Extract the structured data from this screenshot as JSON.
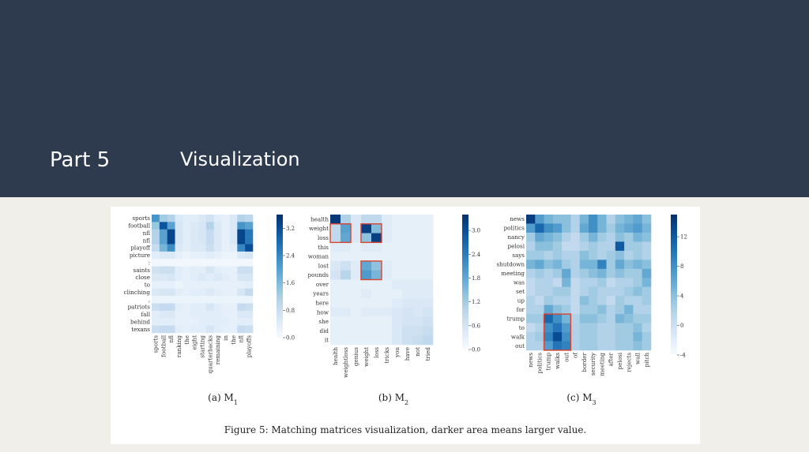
{
  "header": {
    "part": "Part 5",
    "title": "Visualization"
  },
  "figure": {
    "caption": "Figure 5: Matching matrices visualization, darker area means larger value."
  },
  "colors": {
    "header_bg": "#2e3a4e",
    "cmap_low": "#f7fbff",
    "cmap_high": "#08306b",
    "highlight_box": "#d9442e"
  },
  "chart_data": [
    {
      "type": "heatmap",
      "caption": "(a) M",
      "caption_sub": "1",
      "rows": [
        "sports",
        "football",
        "nfl",
        "nfl",
        "playoff",
        "picture",
        ":",
        "saints",
        "close",
        "to",
        "clinching",
        ",",
        "patriots",
        "fall",
        "behind",
        "texans"
      ],
      "cols": [
        "sports",
        "football",
        "nfl",
        "ranking",
        "the",
        "eight",
        "starting",
        "quarterbacks",
        "remaining",
        "in",
        "the",
        "nfl",
        "playoffs"
      ],
      "colorbar_ticks": [
        "3.2",
        "2.4",
        "1.6",
        "0.8",
        "0.0"
      ],
      "vmin": 0,
      "vmax": 3.6,
      "values": [
        [
          2.2,
          1.3,
          1.1,
          0.5,
          0.4,
          0.4,
          0.5,
          0.7,
          0.4,
          0.3,
          0.5,
          1.1,
          1.0
        ],
        [
          1.4,
          3.1,
          2.0,
          0.6,
          0.4,
          0.5,
          0.6,
          1.1,
          0.5,
          0.3,
          0.5,
          2.2,
          2.0
        ],
        [
          1.1,
          2.0,
          3.3,
          0.6,
          0.4,
          0.5,
          0.6,
          0.9,
          0.5,
          0.3,
          0.5,
          3.3,
          2.6
        ],
        [
          1.1,
          2.0,
          3.3,
          0.6,
          0.4,
          0.5,
          0.6,
          0.9,
          0.5,
          0.3,
          0.5,
          3.3,
          2.6
        ],
        [
          0.9,
          1.7,
          2.3,
          0.5,
          0.4,
          0.5,
          0.5,
          0.8,
          0.5,
          0.3,
          0.4,
          2.4,
          3.2
        ],
        [
          0.4,
          0.5,
          0.5,
          0.3,
          0.2,
          0.3,
          0.3,
          0.4,
          0.3,
          0.2,
          0.2,
          0.5,
          0.6
        ],
        [
          0.1,
          0.1,
          0.1,
          0.1,
          0.1,
          0.1,
          0.1,
          0.1,
          0.1,
          0.1,
          0.1,
          0.1,
          0.1
        ],
        [
          0.7,
          0.8,
          0.8,
          0.4,
          0.3,
          0.4,
          0.4,
          0.6,
          0.4,
          0.3,
          0.3,
          0.8,
          0.8
        ],
        [
          0.5,
          0.5,
          0.6,
          0.4,
          0.3,
          0.4,
          0.5,
          0.4,
          0.5,
          0.4,
          0.3,
          0.6,
          0.6
        ],
        [
          0.3,
          0.3,
          0.3,
          0.2,
          0.3,
          0.3,
          0.3,
          0.3,
          0.3,
          0.3,
          0.3,
          0.3,
          0.4
        ],
        [
          0.5,
          0.6,
          0.6,
          0.4,
          0.3,
          0.4,
          0.4,
          0.5,
          0.4,
          0.3,
          0.3,
          0.6,
          0.9
        ],
        [
          0.2,
          0.2,
          0.2,
          0.2,
          0.2,
          0.2,
          0.2,
          0.2,
          0.2,
          0.2,
          0.2,
          0.2,
          0.2
        ],
        [
          0.8,
          0.9,
          0.9,
          0.4,
          0.3,
          0.4,
          0.4,
          0.6,
          0.4,
          0.3,
          0.3,
          0.9,
          0.8
        ],
        [
          0.4,
          0.5,
          0.5,
          0.3,
          0.3,
          0.4,
          0.4,
          0.4,
          0.4,
          0.3,
          0.3,
          0.5,
          0.5
        ],
        [
          0.4,
          0.4,
          0.4,
          0.3,
          0.3,
          0.3,
          0.4,
          0.4,
          0.4,
          0.4,
          0.3,
          0.4,
          0.4
        ],
        [
          0.8,
          0.9,
          0.9,
          0.4,
          0.3,
          0.4,
          0.4,
          0.6,
          0.4,
          0.3,
          0.3,
          0.9,
          0.8
        ]
      ],
      "highlights": []
    },
    {
      "type": "heatmap",
      "caption": "(b) M",
      "caption_sub": "2",
      "rows": [
        "health",
        "weight",
        "loss",
        "this",
        "woman",
        "lost",
        "pounds",
        "over",
        "years",
        "here",
        "how",
        "she",
        "did",
        "it"
      ],
      "cols": [
        "health",
        "weightloss",
        "genius",
        "weight",
        "loss",
        "tricks",
        "you",
        "have",
        "not",
        "tried"
      ],
      "colorbar_ticks": [
        "3.0",
        "2.4",
        "1.8",
        "1.2",
        "0.6",
        "0.0"
      ],
      "vmin": 0,
      "vmax": 3.4,
      "values": [
        [
          3.3,
          1.1,
          0.5,
          0.9,
          0.9,
          0.4,
          0.3,
          0.3,
          0.3,
          0.3
        ],
        [
          0.9,
          1.9,
          0.5,
          3.2,
          1.5,
          0.4,
          0.3,
          0.3,
          0.3,
          0.3
        ],
        [
          0.9,
          1.8,
          0.5,
          1.4,
          3.2,
          0.4,
          0.3,
          0.3,
          0.3,
          0.3
        ],
        [
          0.4,
          0.4,
          0.3,
          0.4,
          0.4,
          0.3,
          0.3,
          0.3,
          0.3,
          0.3
        ],
        [
          0.3,
          0.3,
          0.3,
          0.3,
          0.3,
          0.3,
          0.3,
          0.3,
          0.3,
          0.3
        ],
        [
          0.5,
          0.7,
          0.4,
          1.8,
          1.4,
          0.4,
          0.3,
          0.3,
          0.3,
          0.3
        ],
        [
          0.6,
          1.0,
          0.4,
          2.0,
          1.6,
          0.4,
          0.3,
          0.3,
          0.3,
          0.3
        ],
        [
          0.3,
          0.3,
          0.3,
          0.3,
          0.3,
          0.3,
          0.4,
          0.4,
          0.4,
          0.4
        ],
        [
          0.3,
          0.3,
          0.3,
          0.4,
          0.3,
          0.3,
          0.3,
          0.4,
          0.4,
          0.4
        ],
        [
          0.3,
          0.3,
          0.3,
          0.3,
          0.3,
          0.3,
          0.4,
          0.5,
          0.5,
          0.5
        ],
        [
          0.4,
          0.4,
          0.3,
          0.4,
          0.4,
          0.4,
          0.5,
          0.6,
          0.5,
          0.6
        ],
        [
          0.3,
          0.3,
          0.3,
          0.3,
          0.3,
          0.3,
          0.5,
          0.6,
          0.6,
          0.7
        ],
        [
          0.3,
          0.3,
          0.3,
          0.3,
          0.3,
          0.3,
          0.5,
          0.7,
          0.7,
          0.8
        ],
        [
          0.3,
          0.3,
          0.3,
          0.3,
          0.3,
          0.3,
          0.5,
          0.7,
          0.8,
          0.9
        ]
      ],
      "highlights": [
        {
          "rows": [
            1,
            2
          ],
          "cols": [
            0,
            1
          ]
        },
        {
          "rows": [
            1,
            2
          ],
          "cols": [
            3,
            4
          ]
        },
        {
          "rows": [
            5,
            6
          ],
          "cols": [
            3,
            4
          ]
        }
      ]
    },
    {
      "type": "heatmap",
      "caption": "(c) M",
      "caption_sub": "3",
      "rows": [
        "news",
        "politics",
        "nancy",
        "pelosi",
        "says",
        "shutdown",
        "meeting",
        "was",
        "set",
        "up",
        "for",
        "trump",
        "to",
        "walk",
        "out"
      ],
      "cols": [
        "news",
        "politics",
        "trump",
        "walks",
        "out",
        "of",
        "border",
        "security",
        "meeting",
        "after",
        "pelosi",
        "rejects",
        "wall",
        "pitch"
      ],
      "colorbar_ticks": [
        "12",
        "8",
        "4",
        "0",
        "-4"
      ],
      "vmin": -4,
      "vmax": 15,
      "values": [
        [
          14,
          7,
          5,
          4,
          4,
          2,
          5,
          8,
          5,
          2,
          4,
          5,
          6,
          4
        ],
        [
          7,
          11,
          8,
          7,
          4,
          2,
          6,
          8,
          5,
          3,
          5,
          6,
          7,
          5
        ],
        [
          3,
          6,
          5,
          4,
          2,
          1,
          3,
          5,
          3,
          2,
          4,
          3,
          5,
          4
        ],
        [
          2,
          4,
          4,
          3,
          1,
          1,
          2,
          3,
          2,
          2,
          12,
          3,
          3,
          2
        ],
        [
          3,
          3,
          2,
          3,
          2,
          2,
          4,
          3,
          2,
          3,
          4,
          2,
          3,
          2
        ],
        [
          5,
          6,
          4,
          5,
          3,
          2,
          5,
          5,
          9,
          3,
          6,
          4,
          5,
          4
        ],
        [
          2,
          3,
          2,
          3,
          6,
          2,
          3,
          4,
          5,
          3,
          4,
          3,
          3,
          6
        ],
        [
          1,
          2,
          2,
          1,
          5,
          1,
          2,
          2,
          3,
          1,
          2,
          2,
          3,
          5
        ],
        [
          1,
          2,
          2,
          3,
          3,
          1,
          2,
          3,
          2,
          2,
          2,
          3,
          4,
          3
        ],
        [
          2,
          1,
          3,
          2,
          2,
          1,
          4,
          3,
          2,
          1,
          3,
          2,
          2,
          3
        ],
        [
          2,
          2,
          6,
          4,
          3,
          1,
          3,
          3,
          4,
          2,
          3,
          5,
          2,
          2
        ],
        [
          3,
          3,
          11,
          8,
          5,
          2,
          4,
          4,
          3,
          2,
          5,
          4,
          3,
          3
        ],
        [
          1,
          2,
          8,
          10,
          7,
          2,
          3,
          3,
          2,
          2,
          3,
          3,
          4,
          2
        ],
        [
          2,
          3,
          9,
          13,
          8,
          2,
          3,
          3,
          2,
          2,
          3,
          3,
          5,
          3
        ],
        [
          2,
          2,
          7,
          10,
          9,
          2,
          3,
          3,
          2,
          2,
          3,
          3,
          4,
          3
        ]
      ],
      "highlights": [
        {
          "rows": [
            11,
            14
          ],
          "cols": [
            2,
            4
          ]
        }
      ]
    }
  ]
}
